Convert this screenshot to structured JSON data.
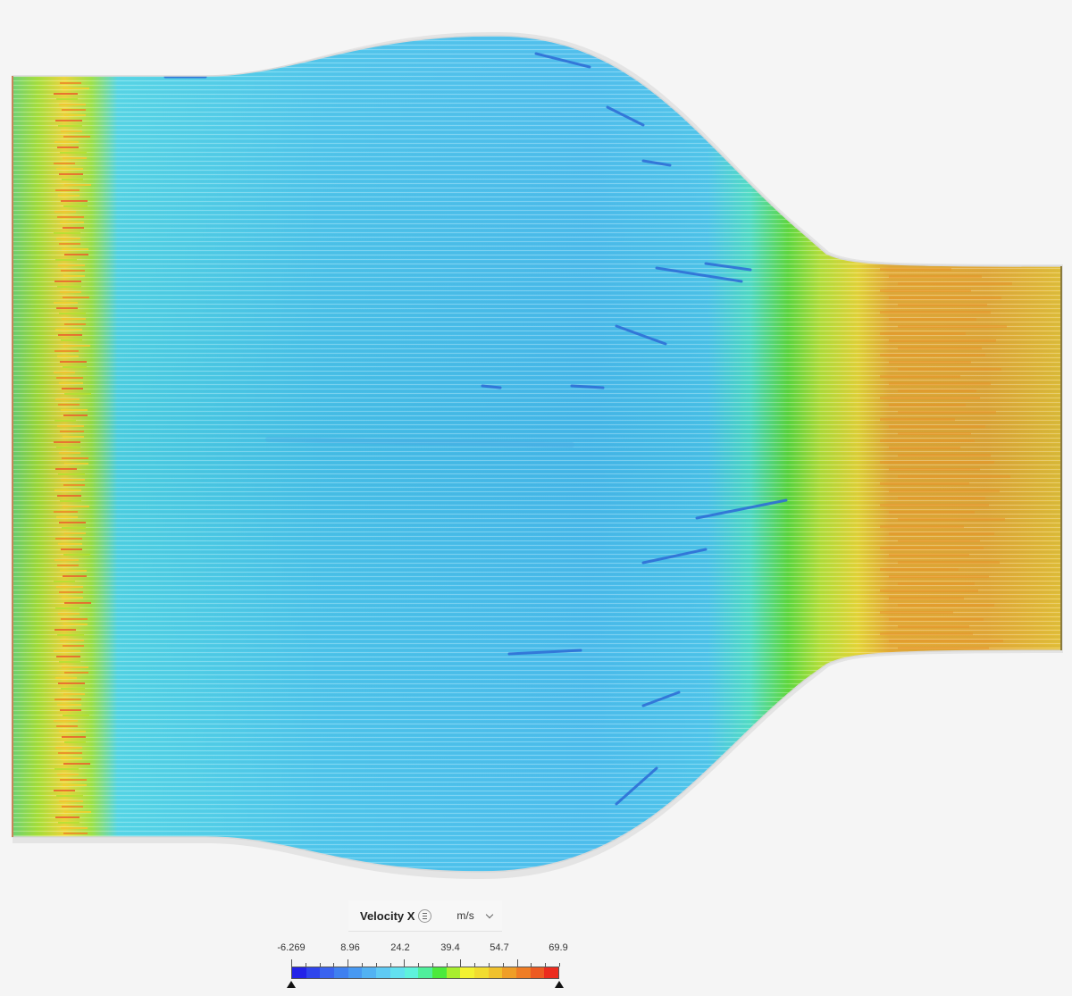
{
  "legend": {
    "variable": "Velocity X",
    "unit": "m/s",
    "ticks": [
      "-6.269",
      "8.96",
      "24.2",
      "39.4",
      "54.7",
      "69.9"
    ],
    "min": -6.269,
    "max": 69.9
  },
  "colors": {
    "colorbar": [
      "#2323e8",
      "#2f45ec",
      "#3a63ef",
      "#3f80f0",
      "#4899f2",
      "#52b2f3",
      "#5fcaf4",
      "#62e0f0",
      "#5ef2dc",
      "#4fef9c",
      "#4bea3c",
      "#a8ee2e",
      "#f2f230",
      "#f1dc2f",
      "#f0c12c",
      "#ef9e27",
      "#ef7d25",
      "#ed5a22",
      "#ec2b1e"
    ],
    "background": "#f5f5f5"
  }
}
